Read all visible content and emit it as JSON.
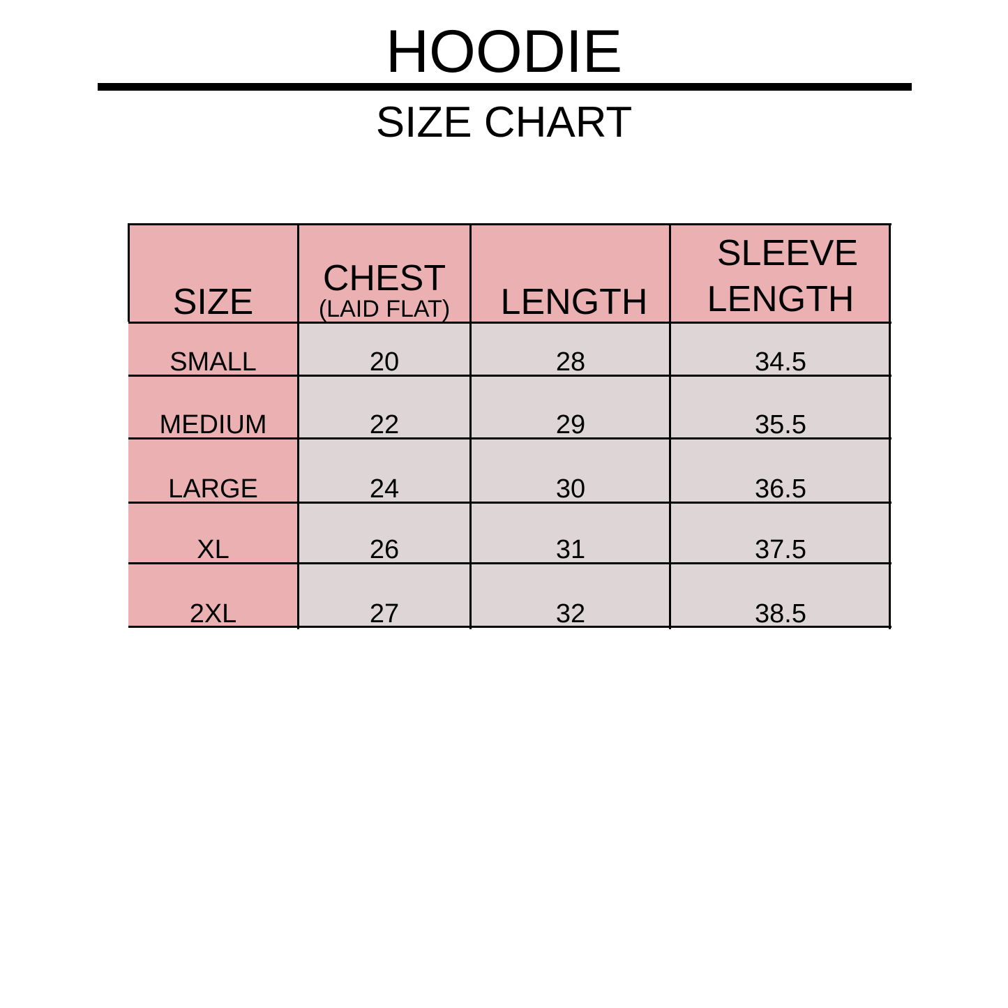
{
  "title": "HOODIE",
  "subtitle": "SIZE CHART",
  "colors": {
    "header_fill": "#ebb0b1",
    "size_column_fill": "#ebb0b1",
    "value_fill": "#ddd5d6",
    "border": "#000000"
  },
  "table": {
    "headers": [
      {
        "label": "SIZE"
      },
      {
        "label": "CHEST",
        "sublabel": "(LAID FLAT)"
      },
      {
        "label": "LENGTH"
      },
      {
        "label": "SLEEVE",
        "label2": "LENGTH"
      }
    ],
    "rows": [
      {
        "size": "SMALL",
        "chest": "20",
        "length": "28",
        "sleeve": "34.5"
      },
      {
        "size": "MEDIUM",
        "chest": "22",
        "length": "29",
        "sleeve": "35.5"
      },
      {
        "size": "LARGE",
        "chest": "24",
        "length": "30",
        "sleeve": "36.5"
      },
      {
        "size": "XL",
        "chest": "26",
        "length": "31",
        "sleeve": "37.5"
      },
      {
        "size": "2XL",
        "chest": "27",
        "length": "32",
        "sleeve": "38.5"
      }
    ]
  }
}
